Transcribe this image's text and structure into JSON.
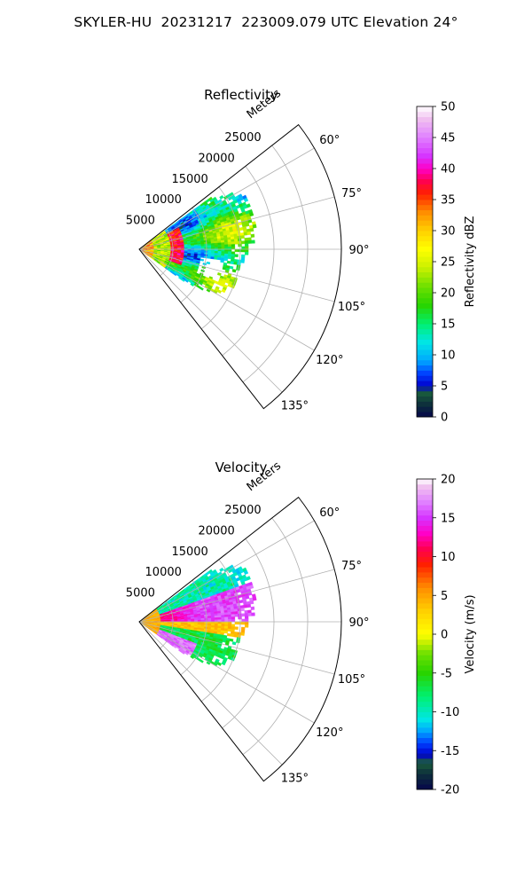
{
  "figure": {
    "title": "SKYLER-HU  20231217  223009.079 UTC Elevation 24°"
  },
  "chart_data": [
    {
      "type": "heatmap",
      "subtype": "polar-sector radar PPI",
      "title": "Reflectivity",
      "radial_label": "Meters",
      "radial_ticks": [
        5000,
        10000,
        15000,
        20000,
        25000
      ],
      "radial_range": [
        0,
        30000
      ],
      "angular_ticks": [
        "60°",
        "75°",
        "90°",
        "105°",
        "120°",
        "135°"
      ],
      "angular_tick_values": [
        60,
        75,
        90,
        105,
        120,
        135
      ],
      "angular_range": [
        52,
        142
      ],
      "grid": true,
      "data_extent": {
        "range_max_m": [
          [
            56,
            13000
          ],
          [
            60,
            16500
          ],
          [
            65,
            17500
          ],
          [
            70,
            17700
          ],
          [
            75,
            17400
          ],
          [
            80,
            17300
          ],
          [
            85,
            17000
          ],
          [
            90,
            16000
          ],
          [
            95,
            15500
          ],
          [
            100,
            15000
          ],
          [
            105,
            14500
          ],
          [
            110,
            15000
          ],
          [
            115,
            14500
          ],
          [
            120,
            12500
          ],
          [
            126,
            8000
          ]
        ]
      },
      "features": [
        {
          "description": "high reflectivity arc (35-40 dBZ)",
          "range_m": [
            5000,
            6500
          ],
          "azimuth_deg": [
            62,
            108
          ]
        },
        {
          "description": "dominant 15-25 dBZ echo",
          "azimuth_deg": [
            55,
            125
          ]
        }
      ],
      "colorbar": {
        "label": "Reflectivity dBZ",
        "min": 0,
        "max": 50,
        "ticks": [
          0,
          5,
          10,
          15,
          20,
          25,
          30,
          35,
          40,
          45,
          50
        ],
        "stops": [
          {
            "v": 0,
            "c": "#06064a"
          },
          {
            "v": 2,
            "c": "#0d2f3c"
          },
          {
            "v": 4,
            "c": "#1a5e3c"
          },
          {
            "v": 5,
            "c": "#0000cc"
          },
          {
            "v": 7,
            "c": "#0040ff"
          },
          {
            "v": 9,
            "c": "#00a5ff"
          },
          {
            "v": 12,
            "c": "#00e6e6"
          },
          {
            "v": 15,
            "c": "#00f070"
          },
          {
            "v": 18,
            "c": "#28d400"
          },
          {
            "v": 21,
            "c": "#6de000"
          },
          {
            "v": 24,
            "c": "#c8f000"
          },
          {
            "v": 27,
            "c": "#ffff00"
          },
          {
            "v": 30,
            "c": "#ffd000"
          },
          {
            "v": 33,
            "c": "#ff8c00"
          },
          {
            "v": 36,
            "c": "#ff2000"
          },
          {
            "v": 38,
            "c": "#ff0050"
          },
          {
            "v": 40,
            "c": "#ff00c8"
          },
          {
            "v": 42,
            "c": "#d633ff"
          },
          {
            "v": 45,
            "c": "#e080ff"
          },
          {
            "v": 48,
            "c": "#f0c0f0"
          },
          {
            "v": 50,
            "c": "#ffffff"
          }
        ]
      }
    },
    {
      "type": "heatmap",
      "subtype": "polar-sector radar PPI",
      "title": "Velocity",
      "radial_label": "Meters",
      "radial_ticks": [
        5000,
        10000,
        15000,
        20000,
        25000
      ],
      "radial_range": [
        0,
        30000
      ],
      "angular_ticks": [
        "60°",
        "75°",
        "90°",
        "105°",
        "120°",
        "135°"
      ],
      "angular_tick_values": [
        60,
        75,
        90,
        105,
        120,
        135
      ],
      "angular_range": [
        52,
        142
      ],
      "grid": true,
      "data_extent": {
        "range_max_m": [
          [
            56,
            13000
          ],
          [
            60,
            16500
          ],
          [
            65,
            17500
          ],
          [
            70,
            17700
          ],
          [
            75,
            17400
          ],
          [
            80,
            17300
          ],
          [
            85,
            17000
          ],
          [
            90,
            16000
          ],
          [
            95,
            15500
          ],
          [
            100,
            15000
          ],
          [
            105,
            14500
          ],
          [
            110,
            15000
          ],
          [
            115,
            14500
          ],
          [
            120,
            12500
          ],
          [
            126,
            8000
          ]
        ]
      },
      "features": [
        {
          "description": "outbound 10-15 m/s (red/magenta) band",
          "azimuth_deg": [
            72,
            90
          ]
        },
        {
          "description": "near-zero 0-5 m/s (yellow/orange) band",
          "azimuth_deg": [
            90,
            98
          ]
        },
        {
          "description": "inbound -5 to -12 m/s (green/cyan)",
          "azimuth_deg": [
            56,
            70
          ]
        },
        {
          "description": "inbound -5 to -10 m/s (green)",
          "azimuth_deg": [
            98,
            125
          ]
        },
        {
          "description": "strong 15+ m/s (magenta) near radar",
          "azimuth_deg": [
            110,
            125
          ]
        }
      ],
      "colorbar": {
        "label": "Velocity (m/s)",
        "min": -20,
        "max": 20,
        "ticks": [
          -20,
          -15,
          -10,
          -5,
          0,
          5,
          10,
          15,
          20
        ],
        "stops": [
          {
            "v": -20,
            "c": "#06064a"
          },
          {
            "v": -18,
            "c": "#0d2f3c"
          },
          {
            "v": -16.5,
            "c": "#1a5e3c"
          },
          {
            "v": -15.5,
            "c": "#0000cc"
          },
          {
            "v": -14,
            "c": "#0040ff"
          },
          {
            "v": -12.5,
            "c": "#00a5ff"
          },
          {
            "v": -11,
            "c": "#00e6e6"
          },
          {
            "v": -8,
            "c": "#00f070"
          },
          {
            "v": -5,
            "c": "#28d400"
          },
          {
            "v": -2.5,
            "c": "#6de000"
          },
          {
            "v": -1,
            "c": "#c8f000"
          },
          {
            "v": 0,
            "c": "#ffff00"
          },
          {
            "v": 3,
            "c": "#ffd000"
          },
          {
            "v": 6,
            "c": "#ff8c00"
          },
          {
            "v": 9,
            "c": "#ff2000"
          },
          {
            "v": 11,
            "c": "#ff0050"
          },
          {
            "v": 13,
            "c": "#ff00c8"
          },
          {
            "v": 15,
            "c": "#d633ff"
          },
          {
            "v": 17,
            "c": "#e080ff"
          },
          {
            "v": 19,
            "c": "#f0c0f0"
          },
          {
            "v": 20,
            "c": "#ffffff"
          }
        ]
      }
    }
  ]
}
